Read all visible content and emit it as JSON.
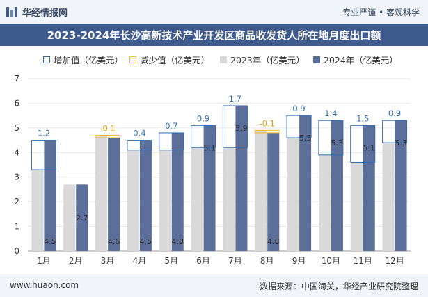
{
  "header": {
    "brand": "华经情报网",
    "tagline": "专业严谨 • 客观科学"
  },
  "title": "2023-2024年长沙高新技术产业开发区商品收发货人所在地月度出口额",
  "legend": [
    {
      "label": "增加值（亿美元）",
      "color": "#2e6db4"
    },
    {
      "label": "减少值（亿美元）",
      "color": "#f2b824"
    },
    {
      "label": "2023年（亿美元）",
      "color": "#d9d9d9"
    },
    {
      "label": "2024年（亿美元）",
      "color": "#5b6f9a"
    }
  ],
  "chart_data": {
    "type": "bar",
    "categories": [
      "1月",
      "2月",
      "3月",
      "4月",
      "5月",
      "6月",
      "7月",
      "8月",
      "9月",
      "10月",
      "11月",
      "12月"
    ],
    "series": [
      {
        "name": "2023年（亿美元）",
        "values": [
          3.3,
          2.7,
          4.7,
          4.1,
          4.1,
          4.2,
          4.2,
          4.9,
          4.6,
          3.9,
          3.6,
          4.4
        ]
      },
      {
        "name": "2024年（亿美元）",
        "values": [
          4.5,
          2.7,
          4.6,
          4.5,
          4.8,
          5.1,
          5.9,
          4.8,
          5.5,
          5.3,
          5.1,
          5.3
        ]
      }
    ],
    "change_labels": [
      "1.2",
      "",
      "-0.1",
      "0.4",
      "0.7",
      "0.9",
      "1.7",
      "-0.1",
      "0.9",
      "1.4",
      "1.5",
      "0.9"
    ],
    "value_labels_2024": [
      "4.5",
      "2.7",
      "4.6",
      "4.5",
      "4.8",
      "5.1",
      "5.9",
      "4.8",
      "5.5",
      "5.3",
      "5.1",
      "5.3"
    ],
    "y_ticks": [
      "0",
      "1",
      "2",
      "3",
      "4",
      "5",
      "6",
      "7"
    ],
    "ylim": [
      0,
      7
    ],
    "colors": {
      "increase": "#2e6db4",
      "decrease": "#f2b824",
      "y2023": "#d9d9d9",
      "y2024": "#5b6f9a"
    }
  },
  "footer": {
    "site": "www.huaon.com",
    "source": "数据来源：中国海关，华经产业研究院整理"
  }
}
